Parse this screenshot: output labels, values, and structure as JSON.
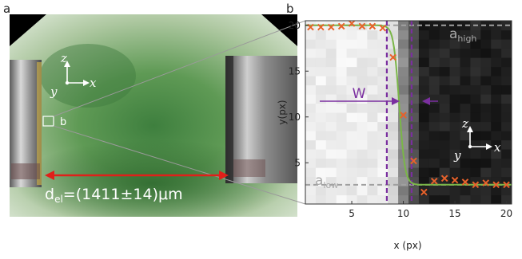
{
  "panel_a": {
    "label": "a",
    "axis_z": "z",
    "axis_x": "x",
    "axis_y": "y",
    "roi_label": "b",
    "measure_symbol": "d",
    "measure_subscript": "el",
    "measure_value": "=(1411±14)μm"
  },
  "panel_b": {
    "label": "b",
    "a_high_symbol": "a",
    "a_high_subscript": "high",
    "a_low_symbol": "a",
    "a_low_subscript": "low",
    "w_label": "W",
    "axis_z": "z",
    "axis_x": "x",
    "axis_y": "y"
  },
  "chart_data": {
    "type": "scatter",
    "xlabel": "x (px)",
    "ylabel": "y(px)",
    "xlim": [
      0.5,
      20.5
    ],
    "ylim": [
      0.5,
      20.5
    ],
    "x_ticks": [
      5,
      10,
      15,
      20
    ],
    "y_ticks": [
      5,
      10,
      15,
      20
    ],
    "a_high": 20.0,
    "a_low": 2.6,
    "w_lines": [
      8.4,
      10.8
    ],
    "series": [
      {
        "marker": "x",
        "color": "#e8622b",
        "points": [
          [
            1,
            19.8
          ],
          [
            2,
            19.8
          ],
          [
            3,
            19.8
          ],
          [
            4,
            19.9
          ],
          [
            5,
            20.2
          ],
          [
            6,
            19.9
          ],
          [
            7,
            19.9
          ],
          [
            8,
            19.7
          ],
          [
            9,
            16.5
          ],
          [
            10,
            10.2
          ],
          [
            11,
            5.2
          ],
          [
            12,
            1.8
          ],
          [
            13,
            3.0
          ],
          [
            14,
            3.3
          ],
          [
            15,
            3.1
          ],
          [
            16,
            2.9
          ],
          [
            17,
            2.6
          ],
          [
            18,
            2.8
          ],
          [
            19,
            2.6
          ],
          [
            20,
            2.6
          ]
        ]
      },
      {
        "type": "line",
        "color": "#7ab648",
        "center": 9.6,
        "width_param": 0.55
      }
    ]
  }
}
